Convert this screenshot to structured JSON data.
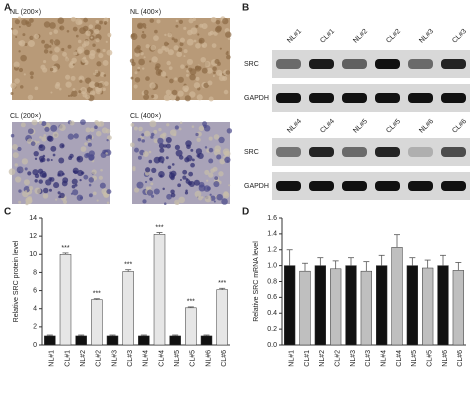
{
  "panels": {
    "a": "A",
    "b": "B",
    "c": "C",
    "d": "D"
  },
  "histology": {
    "images": [
      "NL (200×)",
      "NL (400×)",
      "CL (200×)",
      "CL (400×)"
    ]
  },
  "blot": {
    "lanes_top": [
      "NL#1",
      "CL#1",
      "NL#2",
      "CL#2",
      "NL#3",
      "CL#3"
    ],
    "lanes_bottom": [
      "NL#4",
      "CL#4",
      "NL#5",
      "CL#5",
      "NL#6",
      "CL#6"
    ],
    "rows": [
      "SRC",
      "GAPDH"
    ]
  },
  "chart_data": [
    {
      "type": "bar",
      "ylabel": "Relative SRC protein level",
      "categories": [
        "NL#1",
        "CL#1",
        "NL#2",
        "CL#2",
        "NL#3",
        "CL#3",
        "NL#4",
        "CL#4",
        "NL#5",
        "CL#5",
        "NL#6",
        "CL#6"
      ],
      "values": [
        1,
        10,
        1,
        5,
        1,
        8.1,
        1,
        12.2,
        1,
        4.1,
        1,
        6.1
      ],
      "errors": [
        0.1,
        0.15,
        0.1,
        0.1,
        0.1,
        0.2,
        0.1,
        0.2,
        0.1,
        0.1,
        0.1,
        0.15
      ],
      "annotations": [
        null,
        "***",
        null,
        "***",
        null,
        "***",
        null,
        "***",
        null,
        "***",
        null,
        "***"
      ],
      "colors": [
        "#111111",
        "#e6e6e6",
        "#111111",
        "#e6e6e6",
        "#111111",
        "#e6e6e6",
        "#111111",
        "#e6e6e6",
        "#111111",
        "#e6e6e6",
        "#111111",
        "#e6e6e6"
      ],
      "ylim": [
        0,
        14
      ],
      "yticks": [
        0,
        2,
        4,
        6,
        8,
        10,
        12,
        14
      ],
      "grid": false
    },
    {
      "type": "bar",
      "ylabel": "Relative SRC mRNA level",
      "categories": [
        "NL#1",
        "CL#1",
        "NL#2",
        "CL#2",
        "NL#3",
        "CL#3",
        "NL#4",
        "CL#4",
        "NL#5",
        "CL#5",
        "NL#6",
        "CL#6"
      ],
      "values": [
        1,
        0.93,
        1,
        0.96,
        1,
        0.93,
        1,
        1.23,
        1,
        0.97,
        1,
        0.94
      ],
      "errors": [
        0.2,
        0.1,
        0.1,
        0.1,
        0.1,
        0.12,
        0.13,
        0.16,
        0.1,
        0.1,
        0.13,
        0.1
      ],
      "colors": [
        "#111111",
        "#bfbfbf",
        "#111111",
        "#bfbfbf",
        "#111111",
        "#bfbfbf",
        "#111111",
        "#bfbfbf",
        "#111111",
        "#bfbfbf",
        "#111111",
        "#bfbfbf"
      ],
      "ylim": [
        0,
        1.6
      ],
      "yticks": [
        {
          "value": 0,
          "label": "0.0"
        },
        0.2,
        0.4,
        0.6,
        0.8,
        {
          "value": 1,
          "label": "1.0"
        },
        1.2,
        1.4,
        1.6
      ],
      "grid": false
    }
  ]
}
